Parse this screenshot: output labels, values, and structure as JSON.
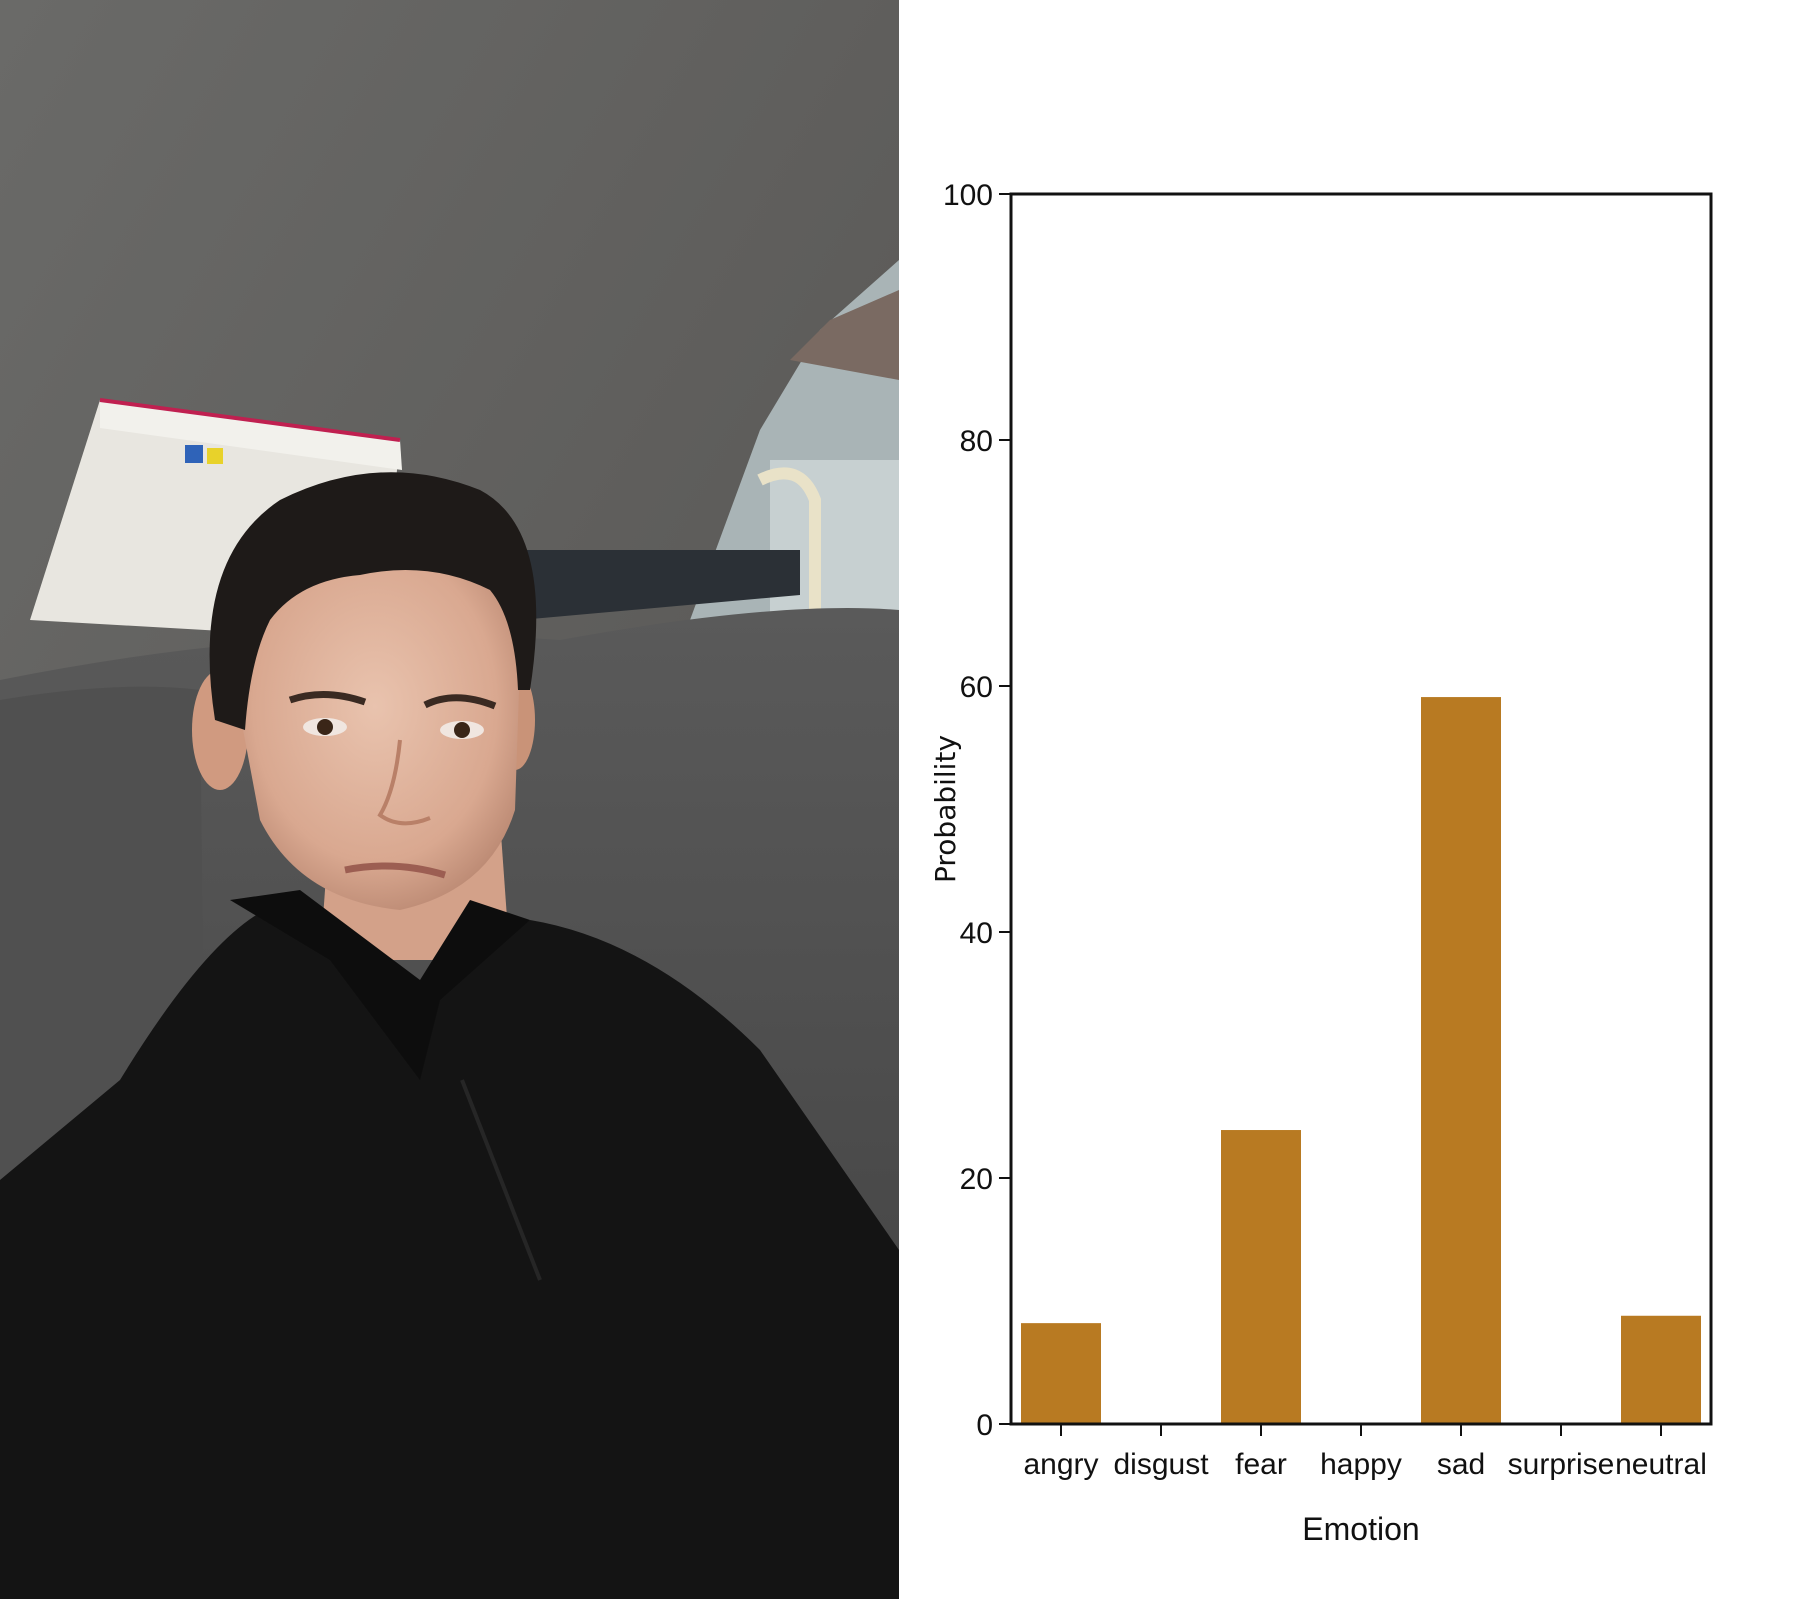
{
  "chart_data": {
    "type": "bar",
    "categories": [
      "angry",
      "disgust",
      "fear",
      "happy",
      "sad",
      "surprise",
      "neutral"
    ],
    "values": [
      8.2,
      0,
      23.9,
      0,
      59.1,
      0,
      8.8
    ],
    "xlabel": "Emotion",
    "ylabel": "Probability",
    "ylim": [
      0,
      100
    ],
    "yticks": [
      0,
      20,
      40,
      60,
      80,
      100
    ],
    "bar_color": "#b87a22",
    "grid": false
  },
  "photo": {
    "description_icon": "person-photo"
  }
}
